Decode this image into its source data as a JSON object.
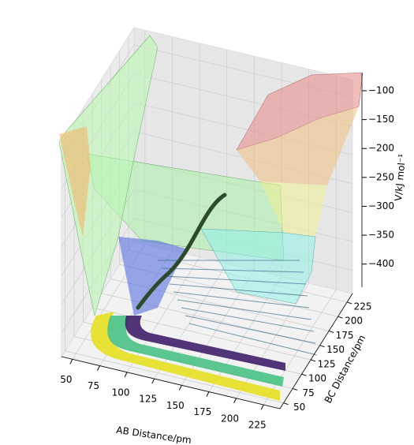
{
  "chart_data": {
    "type": "surface3d",
    "xlabel": "AB Distance/pm",
    "ylabel": "BC Distance/pm",
    "zlabel": "V/kJ mol⁻¹",
    "xlim": [
      40,
      240
    ],
    "ylim": [
      40,
      240
    ],
    "zlim": [
      -440,
      -70
    ],
    "xticks": [
      50,
      75,
      100,
      125,
      150,
      175,
      200,
      225
    ],
    "yticks": [
      50,
      75,
      100,
      125,
      150,
      175,
      200,
      225
    ],
    "zticks": [
      {
        "value": -400,
        "label": "−400"
      },
      {
        "value": -350,
        "label": "−350"
      },
      {
        "value": -300,
        "label": "−300"
      },
      {
        "value": -250,
        "label": "−250"
      },
      {
        "value": -200,
        "label": "−200"
      },
      {
        "value": -150,
        "label": "−150"
      },
      {
        "value": -100,
        "label": "−100"
      }
    ],
    "grid": true
  }
}
